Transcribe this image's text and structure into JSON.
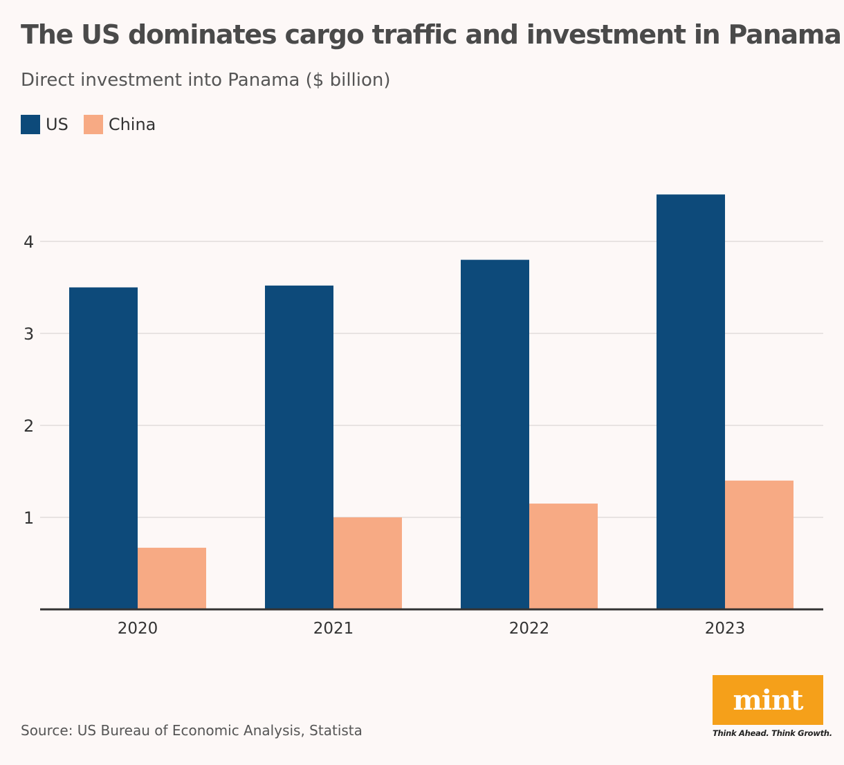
{
  "header": {
    "title": "The US dominates cargo traffic and investment in Panama",
    "subtitle": "Direct investment into Panama ($ billion)"
  },
  "legend": {
    "items": [
      {
        "label": "US",
        "color": "#0d4a7a"
      },
      {
        "label": "China",
        "color": "#f7aa84"
      }
    ]
  },
  "chart_data": {
    "type": "bar",
    "title": "Direct investment into Panama ($ billion)",
    "xlabel": "",
    "ylabel": "",
    "categories": [
      "2020",
      "2021",
      "2022",
      "2023"
    ],
    "series": [
      {
        "name": "US",
        "color": "#0d4a7a",
        "values": [
          3.5,
          3.52,
          3.8,
          4.51
        ]
      },
      {
        "name": "China",
        "color": "#f7aa84",
        "values": [
          0.67,
          1.0,
          1.15,
          1.4
        ]
      }
    ],
    "ylim": [
      0,
      4.9
    ],
    "yticks": [
      1,
      2,
      3,
      4
    ],
    "grid": true,
    "legend_position": "top-left"
  },
  "footer": {
    "source": "Source: US Bureau of Economic Analysis, Statista"
  },
  "logo": {
    "wordmark": "mint",
    "tagline": "Think Ahead. Think Growth.",
    "color": "#f5a01a"
  }
}
